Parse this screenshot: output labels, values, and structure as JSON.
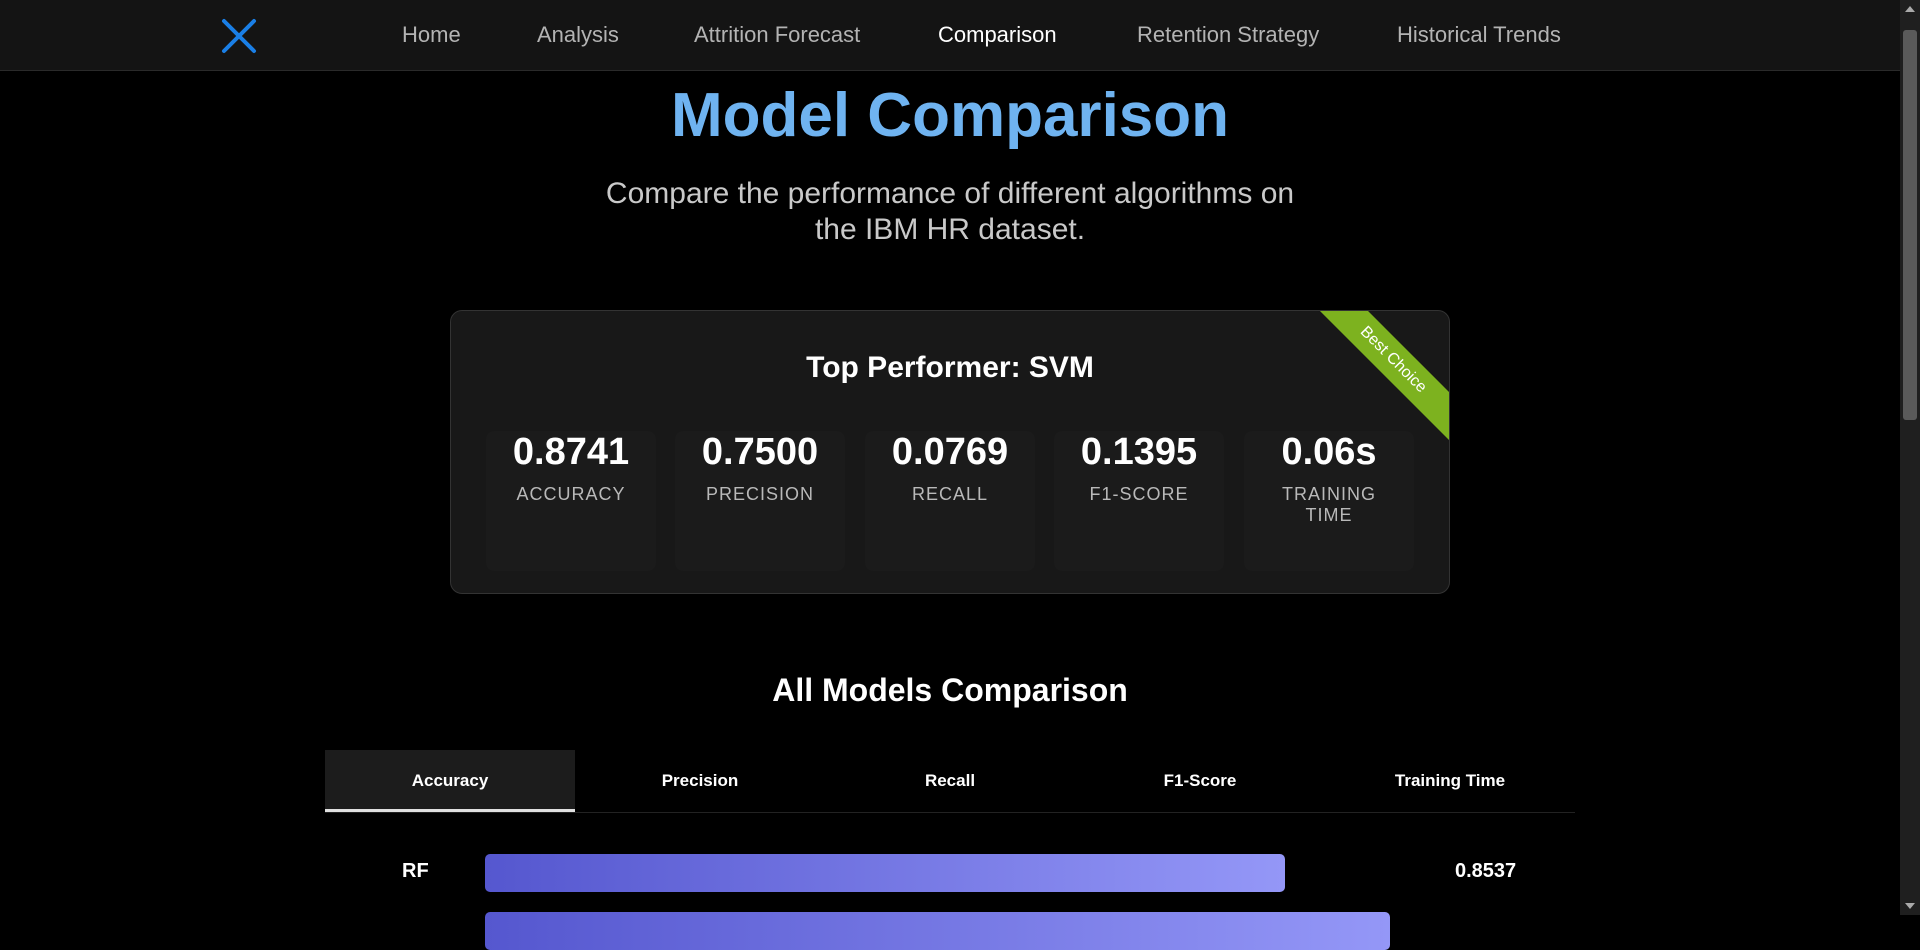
{
  "nav": {
    "logo_icon": "x-logo-icon",
    "items": [
      {
        "label": "Home",
        "active": false
      },
      {
        "label": "Analysis",
        "active": false
      },
      {
        "label": "Attrition Forecast",
        "active": false
      },
      {
        "label": "Comparison",
        "active": true
      },
      {
        "label": "Retention Strategy",
        "active": false
      },
      {
        "label": "Historical Trends",
        "active": false
      }
    ]
  },
  "header": {
    "title": "Model Comparison",
    "subtitle_line1": "Compare the performance of different algorithms on",
    "subtitle_line2": "the IBM HR dataset."
  },
  "top_performer": {
    "title": "Top Performer: SVM",
    "ribbon": "Best Choice",
    "metrics": [
      {
        "value": "0.8741",
        "label": "ACCURACY"
      },
      {
        "value": "0.7500",
        "label": "PRECISION"
      },
      {
        "value": "0.0769",
        "label": "RECALL"
      },
      {
        "value": "0.1395",
        "label": "F1-SCORE"
      },
      {
        "value": "0.06s",
        "label_line1": "TRAINING",
        "label_line2": "TIME"
      }
    ]
  },
  "comparison": {
    "title": "All Models Comparison",
    "tabs": [
      "Accuracy",
      "Precision",
      "Recall",
      "F1-Score",
      "Training Time"
    ],
    "active_tab": "Accuracy",
    "rows": [
      {
        "model": "RF",
        "value": "0.8537",
        "fill_fraction": 0.8537
      }
    ]
  },
  "colors": {
    "title": "#6fb3f0",
    "ribbon": "#7db21f",
    "bar_start": "#5557cf",
    "bar_end": "#9497f7"
  }
}
